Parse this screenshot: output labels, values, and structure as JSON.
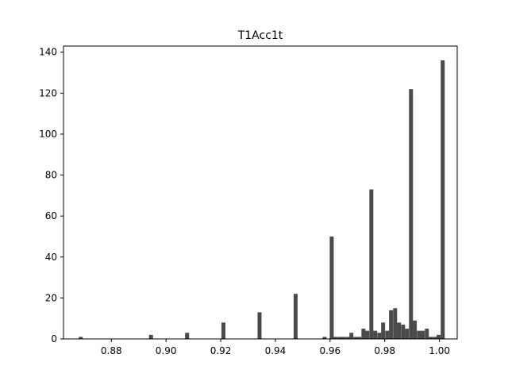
{
  "chart_data": {
    "type": "bar",
    "title": "T1Acc1t",
    "xlabel": "",
    "ylabel": "",
    "xlim": [
      0.8625,
      1.0065
    ],
    "ylim": [
      0,
      143
    ],
    "bin_width": 0.00145,
    "bar_color": "#4a4a4a",
    "grid": false,
    "legend": "none",
    "x_ticks": [
      0.88,
      0.9,
      0.92,
      0.94,
      0.96,
      0.98,
      1.0
    ],
    "x_tick_labels": [
      "0.88",
      "0.90",
      "0.92",
      "0.94",
      "0.96",
      "0.98",
      "1.00"
    ],
    "y_ticks": [
      0,
      20,
      40,
      60,
      80,
      100,
      120,
      140
    ],
    "y_tick_labels": [
      "0",
      "20",
      "40",
      "60",
      "80",
      "100",
      "120",
      "140"
    ],
    "bins": [
      {
        "x": 0.8688,
        "count": 1
      },
      {
        "x": 0.8945,
        "count": 2
      },
      {
        "x": 0.9077,
        "count": 3
      },
      {
        "x": 0.921,
        "count": 8
      },
      {
        "x": 0.9342,
        "count": 13
      },
      {
        "x": 0.9474,
        "count": 22
      },
      {
        "x": 0.958,
        "count": 1
      },
      {
        "x": 0.9606,
        "count": 50
      },
      {
        "x": 0.962,
        "count": 1
      },
      {
        "x": 0.9635,
        "count": 1
      },
      {
        "x": 0.9649,
        "count": 1
      },
      {
        "x": 0.9664,
        "count": 1
      },
      {
        "x": 0.9678,
        "count": 3
      },
      {
        "x": 0.9693,
        "count": 1
      },
      {
        "x": 0.9707,
        "count": 1
      },
      {
        "x": 0.9722,
        "count": 5
      },
      {
        "x": 0.9736,
        "count": 4
      },
      {
        "x": 0.9751,
        "count": 73
      },
      {
        "x": 0.9765,
        "count": 4
      },
      {
        "x": 0.978,
        "count": 3
      },
      {
        "x": 0.9794,
        "count": 8
      },
      {
        "x": 0.9809,
        "count": 4
      },
      {
        "x": 0.9823,
        "count": 14
      },
      {
        "x": 0.9838,
        "count": 15
      },
      {
        "x": 0.9852,
        "count": 8
      },
      {
        "x": 0.9867,
        "count": 7
      },
      {
        "x": 0.9881,
        "count": 5
      },
      {
        "x": 0.9896,
        "count": 122
      },
      {
        "x": 0.991,
        "count": 9
      },
      {
        "x": 0.9925,
        "count": 4
      },
      {
        "x": 0.9939,
        "count": 4
      },
      {
        "x": 0.9954,
        "count": 5
      },
      {
        "x": 0.9968,
        "count": 1
      },
      {
        "x": 0.9983,
        "count": 1
      },
      {
        "x": 0.9997,
        "count": 2
      },
      {
        "x": 1.0004,
        "count": 1
      },
      {
        "x": 1.0012,
        "count": 136
      }
    ]
  }
}
